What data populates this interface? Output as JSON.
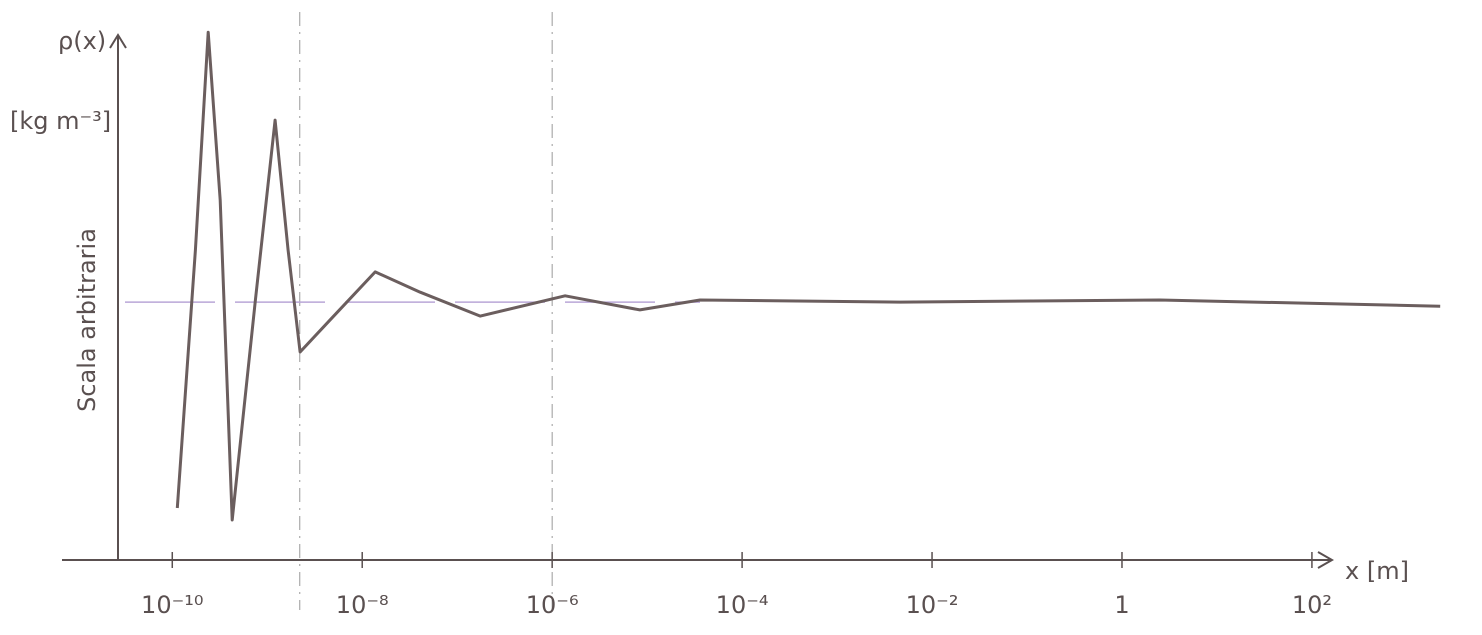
{
  "chart_data": {
    "type": "line",
    "y_label": "ρ(x)",
    "y_unit": "[kg m⁻³]",
    "y_axis_title": "Scala arbitraria",
    "x_label": "x [m]",
    "x_scale": "log",
    "xlim": [
      6.9e-12,
      155
    ],
    "ylim": [
      0,
      10
    ],
    "xticks": [
      {
        "value": 1e-10,
        "label": "10⁻¹⁰"
      },
      {
        "value": 1e-08,
        "label": "10⁻⁸"
      },
      {
        "value": 1e-06,
        "label": "10⁻⁶"
      },
      {
        "value": 0.0001,
        "label": "10⁻⁴"
      },
      {
        "value": 0.01,
        "label": "10⁻²"
      },
      1,
      {
        "value": 100,
        "label": "10²"
      }
    ],
    "hline": 4.96,
    "hline_color": "#b9a6d8",
    "vlines": [
      2.2e-09,
      1e-06
    ],
    "series": [
      {
        "color": "#6b5e5e",
        "x": [
          1.13e-10,
          1.75e-10,
          2.39e-10,
          3.2e-10,
          4.28e-10,
          7.5e-10,
          1.21e-09,
          1.66e-09,
          2.22e-09,
          4.6e-09,
          1.37e-08,
          4.08e-08,
          1.75e-07,
          1.37e-06,
          8.4e-06,
          3.6e-05,
          0.0046,
          2.5,
          2240
        ],
        "values": [
          1.0,
          5.96,
          10.15,
          6.92,
          0.77,
          5.0,
          8.46,
          5.96,
          4.0,
          4.62,
          5.54,
          5.15,
          4.69,
          5.08,
          4.81,
          5.0,
          4.96,
          5.0,
          4.88
        ]
      }
    ]
  }
}
